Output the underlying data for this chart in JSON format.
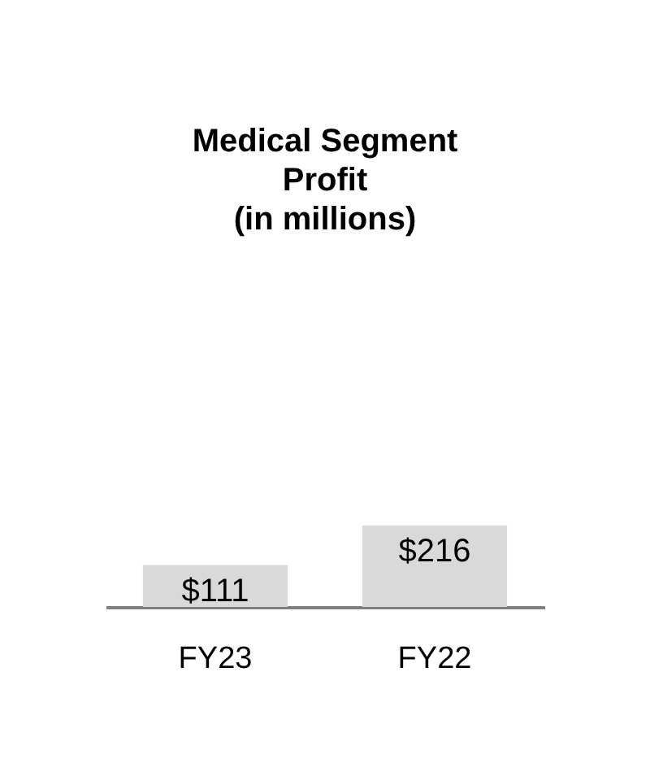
{
  "chart_data": {
    "type": "bar",
    "title": "Medical Segment Profit (in millions)",
    "categories": [
      "FY23",
      "FY22"
    ],
    "values": [
      111,
      216
    ],
    "value_labels": [
      "$111",
      "$216"
    ],
    "color": "#d9d9d9",
    "grid": false
  }
}
